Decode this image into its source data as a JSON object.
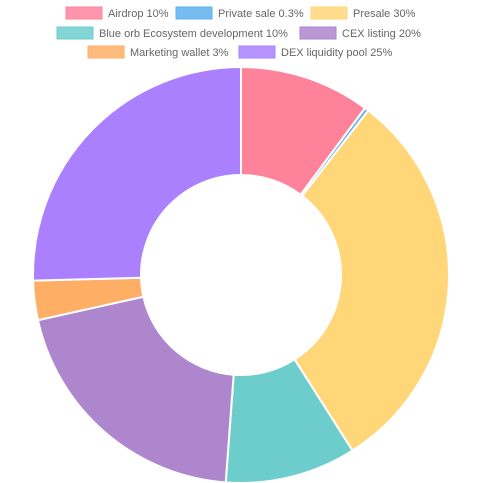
{
  "chart_data": {
    "type": "doughnut",
    "title": "",
    "legend_position": "top",
    "series": [
      {
        "label": "Airdrop 10%",
        "value": 10,
        "color": "#ff829b"
      },
      {
        "label": "Private sale 0.3%",
        "value": 0.3,
        "color": "#5eb0ee"
      },
      {
        "label": "Presale 30%",
        "value": 30,
        "color": "#ffd779"
      },
      {
        "label": "Blue orb Ecosystem development 10%",
        "value": 10,
        "color": "#6dcdcc"
      },
      {
        "label": "CEX listing 20%",
        "value": 20,
        "color": "#ae86ce"
      },
      {
        "label": "Marketing wallet 3%",
        "value": 3,
        "color": "#ffae66"
      },
      {
        "label": "DEX liquidity pool 25%",
        "value": 25,
        "color": "#aa80ff"
      }
    ]
  }
}
